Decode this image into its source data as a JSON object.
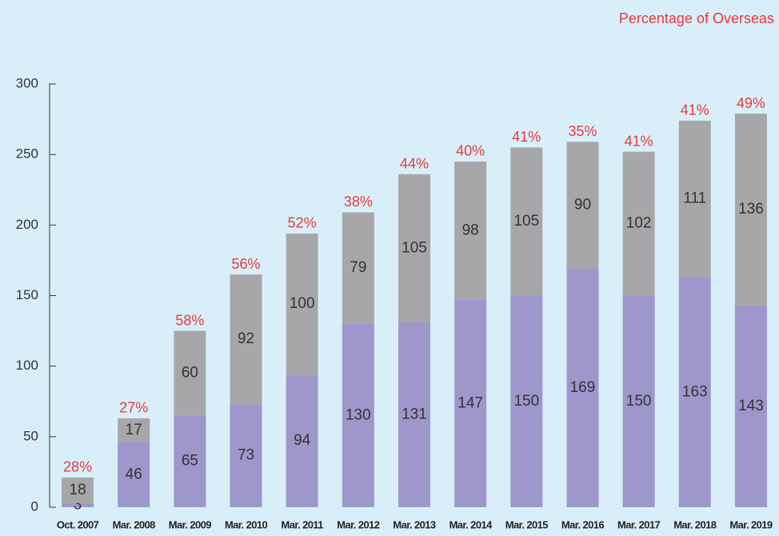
{
  "chart_data": {
    "type": "stacked_bar",
    "legend_note": "Percentage of Overseas",
    "categories": [
      "Oct. 2007",
      "Mar. 2008",
      "Mar. 2009",
      "Mar. 2010",
      "Mar. 2011",
      "Mar. 2012",
      "Mar. 2013",
      "Mar. 2014",
      "Mar. 2015",
      "Mar. 2016",
      "Mar. 2017",
      "Mar. 2018",
      "Mar. 2019"
    ],
    "series": [
      {
        "color": "#9d97cb",
        "values": [
          3,
          46,
          65,
          73,
          94,
          130,
          131,
          147,
          150,
          169,
          150,
          163,
          143
        ]
      },
      {
        "color": "#a7a7a9",
        "values": [
          18,
          17,
          60,
          92,
          100,
          79,
          105,
          98,
          105,
          90,
          102,
          111,
          136
        ]
      }
    ],
    "overseas_percentage": {
      "color": "#e8383d",
      "values": [
        28,
        27,
        58,
        56,
        52,
        38,
        44,
        40,
        41,
        35,
        41,
        41,
        49
      ],
      "value_labels": [
        "28%",
        "27%",
        "58%",
        "56%",
        "52%",
        "38%",
        "44%",
        "40%",
        "41%",
        "35%",
        "41%",
        "41%",
        "49%"
      ]
    },
    "ylim": [
      0,
      300
    ],
    "yticks": [
      0,
      50,
      100,
      150,
      200,
      250,
      300
    ],
    "grid": false
  }
}
